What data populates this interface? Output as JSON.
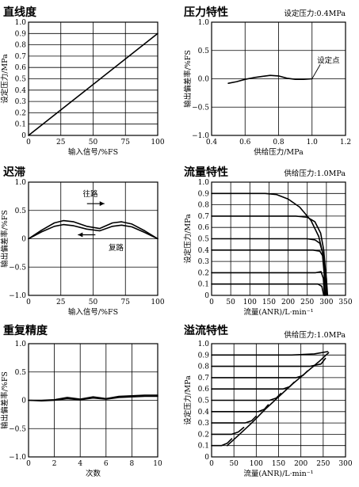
{
  "chart_data": [
    {
      "id": "p1",
      "type": "line",
      "title": "直线度",
      "note": "",
      "xlabel": "输入信号/%FS",
      "ylabel": "设定压力/MPa",
      "xlim": [
        0,
        100
      ],
      "ylim": [
        0,
        1.0
      ],
      "xticks": [
        0,
        25,
        50,
        75,
        100
      ],
      "xtick_labels": [
        "0",
        "25",
        "50",
        "75",
        "100"
      ],
      "yticks": [
        0,
        0.1,
        0.2,
        0.3,
        0.4,
        0.5,
        0.6,
        0.7,
        0.8,
        0.9,
        1.0
      ],
      "ytick_labels": [
        "0",
        "0.1",
        "0.2",
        "0.3",
        "0.4",
        "0.5",
        "0.6",
        "0.7",
        "0.8",
        "0.9",
        "1.0"
      ],
      "grid": true,
      "series": [
        {
          "x": [
            0,
            100
          ],
          "y": [
            0,
            0.9
          ]
        }
      ]
    },
    {
      "id": "p2",
      "type": "line",
      "title": "压力特性",
      "note": "设定压力:0.4MPa",
      "xlabel": "供给压力/MPa",
      "ylabel": "输出偏差率/%FS",
      "xlim": [
        0.4,
        1.2
      ],
      "ylim": [
        -1.0,
        1.0
      ],
      "xticks": [
        0.4,
        0.6,
        0.8,
        1.0,
        1.2
      ],
      "xtick_labels": [
        "0.4",
        "0.6",
        "0.8",
        "1.0",
        "1.2"
      ],
      "yticks": [
        -1.0,
        -0.5,
        0,
        0.5,
        1.0
      ],
      "ytick_labels": [
        "−1.0",
        "−0.5",
        "0.0",
        "0.5",
        "1.0"
      ],
      "grid": true,
      "series": [
        {
          "x": [
            0.5,
            0.55,
            0.6,
            0.65,
            0.7,
            0.75,
            0.8,
            0.85,
            0.9,
            0.95,
            1.0
          ],
          "y": [
            -0.08,
            -0.05,
            -0.01,
            0.02,
            0.04,
            0.06,
            0.05,
            0.01,
            -0.01,
            -0.01,
            0.0
          ]
        }
      ],
      "annotations": [
        {
          "text": "设定点",
          "x": 1.0,
          "y": 0.0,
          "label_x": 1.03,
          "label_y": 0.28
        }
      ]
    },
    {
      "id": "p3",
      "type": "line",
      "title": "迟滞",
      "note": "",
      "xlabel": "输入信号/%FS",
      "ylabel": "输出偏差率/%FS",
      "xlim": [
        0,
        100
      ],
      "ylim": [
        -1.0,
        1.0
      ],
      "xticks": [
        0,
        25,
        50,
        75,
        100
      ],
      "xtick_labels": [
        "0",
        "25",
        "50",
        "75",
        "100"
      ],
      "yticks": [
        -1.0,
        -0.5,
        0,
        0.5,
        1.0
      ],
      "ytick_labels": [
        "−1.0",
        "−0.5",
        "0",
        "0.5",
        "1.0"
      ],
      "grid": true,
      "series": [
        {
          "name": "往路",
          "x": [
            0,
            10,
            20,
            27,
            35,
            45,
            55,
            65,
            72,
            80,
            90,
            100
          ],
          "y": [
            0.0,
            0.15,
            0.28,
            0.32,
            0.3,
            0.22,
            0.18,
            0.28,
            0.3,
            0.26,
            0.14,
            0.0
          ]
        },
        {
          "name": "复路",
          "x": [
            0,
            10,
            20,
            27,
            35,
            45,
            55,
            65,
            72,
            80,
            90,
            100
          ],
          "y": [
            0.0,
            0.12,
            0.22,
            0.25,
            0.23,
            0.17,
            0.14,
            0.22,
            0.24,
            0.21,
            0.11,
            0.0
          ]
        }
      ],
      "annotations": [
        {
          "text": "往路",
          "x": 52,
          "y": 0.62,
          "arrow": "right",
          "label_x": 42,
          "label_y": 0.75
        },
        {
          "text": "复路",
          "x": 45,
          "y": 0.07,
          "arrow": "left",
          "label_x": 62,
          "label_y": -0.2
        }
      ]
    },
    {
      "id": "p4",
      "type": "line",
      "title": "流量特性",
      "note": "供给压力:1.0MPa",
      "xlabel": "流量(ANR)/L·min⁻¹",
      "ylabel": "设定压力/MPa",
      "xlim": [
        0,
        350
      ],
      "ylim": [
        0,
        1.0
      ],
      "xticks": [
        0,
        50,
        100,
        150,
        200,
        250,
        300,
        350
      ],
      "xtick_labels": [
        "0",
        "50",
        "100",
        "150",
        "200",
        "250",
        "300",
        "350"
      ],
      "yticks": [
        0,
        0.1,
        0.2,
        0.3,
        0.4,
        0.5,
        0.6,
        0.7,
        0.8,
        0.9,
        1.0
      ],
      "ytick_labels": [
        "0",
        "0.1",
        "0.2",
        "0.3",
        "0.4",
        "0.5",
        "0.6",
        "0.7",
        "0.8",
        "0.9",
        "1.0"
      ],
      "grid": true,
      "series": [
        {
          "x": [
            0,
            140,
            170,
            200,
            230,
            260,
            280,
            292,
            300,
            303
          ],
          "y": [
            0.9,
            0.9,
            0.89,
            0.85,
            0.78,
            0.66,
            0.52,
            0.35,
            0.15,
            0.0
          ]
        },
        {
          "x": [
            0,
            220,
            250,
            270,
            285,
            293,
            298,
            300
          ],
          "y": [
            0.7,
            0.7,
            0.69,
            0.65,
            0.55,
            0.4,
            0.2,
            0.0
          ]
        },
        {
          "x": [
            0,
            250,
            270,
            283,
            290,
            295,
            297
          ],
          "y": [
            0.5,
            0.5,
            0.49,
            0.46,
            0.38,
            0.2,
            0.0
          ]
        },
        {
          "x": [
            0,
            265,
            283,
            290,
            294,
            296
          ],
          "y": [
            0.4,
            0.4,
            0.39,
            0.35,
            0.2,
            0.0
          ]
        },
        {
          "x": [
            0,
            272,
            286,
            292,
            295
          ],
          "y": [
            0.2,
            0.2,
            0.21,
            0.15,
            0.0
          ]
        },
        {
          "x": [
            0,
            278,
            288,
            293
          ],
          "y": [
            0.1,
            0.1,
            0.08,
            0.0
          ]
        }
      ]
    },
    {
      "id": "p5",
      "type": "line",
      "title": "重复精度",
      "note": "",
      "xlabel": "次数",
      "ylabel": "输出偏差率/%FS",
      "xlim": [
        0,
        10
      ],
      "ylim": [
        -1.0,
        1.0
      ],
      "xticks": [
        0,
        2,
        4,
        6,
        8,
        10
      ],
      "xtick_labels": [
        "0",
        "2",
        "4",
        "6",
        "8",
        "10"
      ],
      "yticks": [
        -1.0,
        -0.5,
        0,
        0.5,
        1.0
      ],
      "ytick_labels": [
        "−1.0",
        "−0.5",
        "0",
        "0.5",
        "1.0"
      ],
      "grid": true,
      "series": [
        {
          "x": [
            0,
            1,
            2,
            3,
            4,
            5,
            6,
            7,
            8,
            9,
            10
          ],
          "y": [
            0.0,
            0.0,
            0.01,
            0.05,
            0.02,
            0.06,
            0.03,
            0.07,
            0.08,
            0.09,
            0.09
          ]
        },
        {
          "x": [
            0,
            1,
            2,
            3,
            4,
            5,
            6,
            7,
            8,
            9,
            10
          ],
          "y": [
            0.0,
            -0.01,
            0.0,
            0.03,
            0.01,
            0.04,
            0.02,
            0.05,
            0.06,
            0.07,
            0.07
          ]
        }
      ]
    },
    {
      "id": "p6",
      "type": "line",
      "title": "溢流特性",
      "note": "供给压力:1.0MPa",
      "xlabel": "流量(ANR)/L·min⁻¹",
      "ylabel": "设定压力/MPa",
      "xlim": [
        0,
        300
      ],
      "ylim": [
        0,
        1.0
      ],
      "xticks": [
        0,
        50,
        100,
        150,
        200,
        250,
        300
      ],
      "xtick_labels": [
        "0",
        "50",
        "100",
        "150",
        "200",
        "250",
        "300"
      ],
      "yticks": [
        0,
        0.1,
        0.2,
        0.3,
        0.4,
        0.5,
        0.6,
        0.7,
        0.8,
        0.9,
        1.0
      ],
      "ytick_labels": [
        "0",
        "0.1",
        "0.2",
        "0.3",
        "0.4",
        "0.5",
        "0.6",
        "0.7",
        "0.8",
        "0.9",
        "1.0"
      ],
      "grid": true,
      "series": [
        {
          "x": [
            0,
            180,
            230,
            260
          ],
          "y": [
            0.9,
            0.9,
            0.91,
            0.93
          ]
        },
        {
          "x": [
            0,
            220,
            245,
            255
          ],
          "y": [
            0.8,
            0.8,
            0.82,
            0.87
          ]
        },
        {
          "x": [
            0,
            190,
            205,
            215
          ],
          "y": [
            0.7,
            0.7,
            0.72,
            0.76
          ]
        },
        {
          "x": [
            0,
            160,
            175,
            185
          ],
          "y": [
            0.6,
            0.6,
            0.62,
            0.66
          ]
        },
        {
          "x": [
            0,
            130,
            145,
            155
          ],
          "y": [
            0.5,
            0.5,
            0.52,
            0.56
          ]
        },
        {
          "x": [
            0,
            105,
            118,
            127
          ],
          "y": [
            0.4,
            0.4,
            0.42,
            0.46
          ]
        },
        {
          "x": [
            0,
            75,
            90,
            100
          ],
          "y": [
            0.3,
            0.3,
            0.32,
            0.36
          ]
        },
        {
          "x": [
            0,
            45,
            60,
            72
          ],
          "y": [
            0.2,
            0.2,
            0.22,
            0.26
          ]
        },
        {
          "x": [
            0,
            22,
            35,
            45
          ],
          "y": [
            0.1,
            0.1,
            0.12,
            0.16
          ]
        },
        {
          "x": [
            35,
            60,
            90,
            120,
            150,
            180,
            210,
            240,
            262
          ],
          "y": [
            0.1,
            0.19,
            0.3,
            0.42,
            0.53,
            0.64,
            0.74,
            0.84,
            0.92
          ]
        }
      ]
    }
  ]
}
